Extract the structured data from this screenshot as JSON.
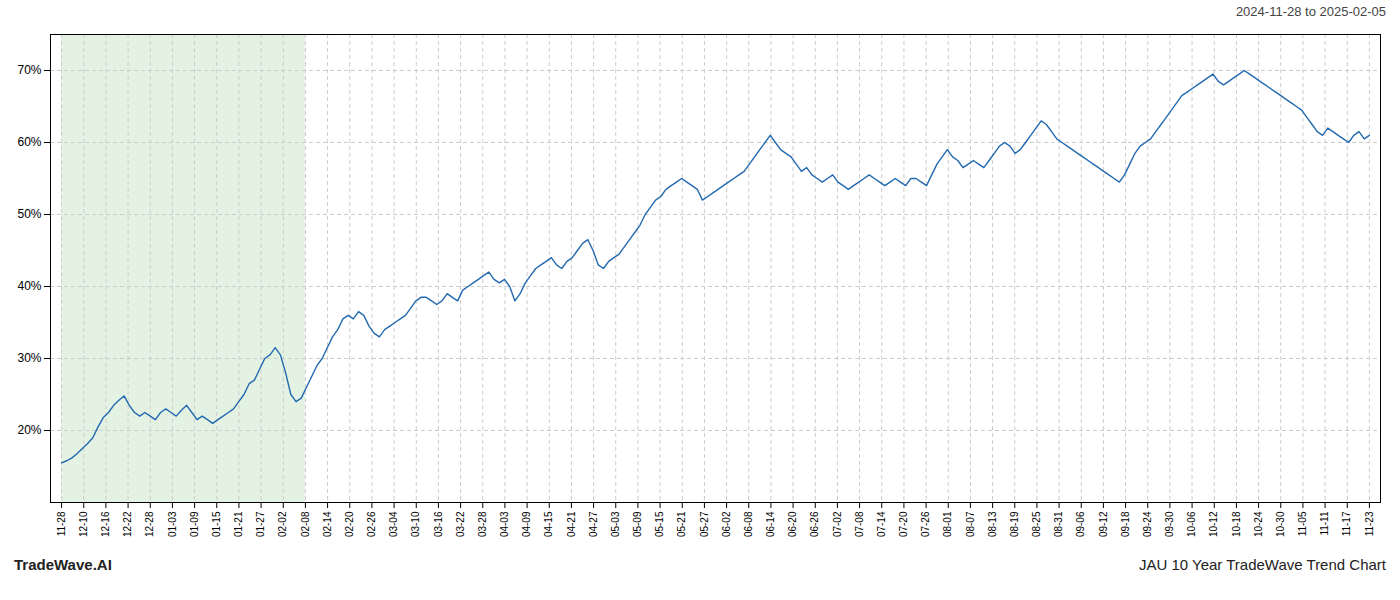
{
  "chart_data": {
    "type": "line",
    "title": "JAU 10 Year TradeWave Trend Chart",
    "subtitle": "2024-11-28 to 2025-02-05",
    "annotations": [
      "TradeWave.AI"
    ],
    "color": "#2369b0",
    "shaded": {
      "from": "11-28",
      "to": "02-08",
      "color": "#d8edd8"
    },
    "grid": true,
    "xlim": [
      -0.5,
      59.5
    ],
    "xticks": [
      {
        "value": 0,
        "label": "11-28"
      },
      {
        "value": 1,
        "label": "12-10"
      },
      {
        "value": 2,
        "label": "12-16"
      },
      {
        "value": 3,
        "label": "12-22"
      },
      {
        "value": 4,
        "label": "12-28"
      },
      {
        "value": 5,
        "label": "01-03"
      },
      {
        "value": 6,
        "label": "01-09"
      },
      {
        "value": 7,
        "label": "01-15"
      },
      {
        "value": 8,
        "label": "01-21"
      },
      {
        "value": 9,
        "label": "01-27"
      },
      {
        "value": 10,
        "label": "02-02"
      },
      {
        "value": 11,
        "label": "02-08"
      },
      {
        "value": 12,
        "label": "02-14"
      },
      {
        "value": 13,
        "label": "02-20"
      },
      {
        "value": 14,
        "label": "02-26"
      },
      {
        "value": 15,
        "label": "03-04"
      },
      {
        "value": 16,
        "label": "03-10"
      },
      {
        "value": 17,
        "label": "03-16"
      },
      {
        "value": 18,
        "label": "03-22"
      },
      {
        "value": 19,
        "label": "03-28"
      },
      {
        "value": 20,
        "label": "04-03"
      },
      {
        "value": 21,
        "label": "04-09"
      },
      {
        "value": 22,
        "label": "04-15"
      },
      {
        "value": 23,
        "label": "04-21"
      },
      {
        "value": 24,
        "label": "04-27"
      },
      {
        "value": 25,
        "label": "05-03"
      },
      {
        "value": 26,
        "label": "05-09"
      },
      {
        "value": 27,
        "label": "05-15"
      },
      {
        "value": 28,
        "label": "05-21"
      },
      {
        "value": 29,
        "label": "05-27"
      },
      {
        "value": 30,
        "label": "06-02"
      },
      {
        "value": 31,
        "label": "06-08"
      },
      {
        "value": 32,
        "label": "06-14"
      },
      {
        "value": 33,
        "label": "06-20"
      },
      {
        "value": 34,
        "label": "06-26"
      },
      {
        "value": 35,
        "label": "07-02"
      },
      {
        "value": 36,
        "label": "07-08"
      },
      {
        "value": 37,
        "label": "07-14"
      },
      {
        "value": 38,
        "label": "07-20"
      },
      {
        "value": 39,
        "label": "07-26"
      },
      {
        "value": 40,
        "label": "08-01"
      },
      {
        "value": 41,
        "label": "08-07"
      },
      {
        "value": 42,
        "label": "08-13"
      },
      {
        "value": 43,
        "label": "08-19"
      },
      {
        "value": 44,
        "label": "08-25"
      },
      {
        "value": 45,
        "label": "08-31"
      },
      {
        "value": 46,
        "label": "09-06"
      },
      {
        "value": 47,
        "label": "09-12"
      },
      {
        "value": 48,
        "label": "09-18"
      },
      {
        "value": 49,
        "label": "09-24"
      },
      {
        "value": 50,
        "label": "09-30"
      },
      {
        "value": 51,
        "label": "10-06"
      },
      {
        "value": 52,
        "label": "10-12"
      },
      {
        "value": 53,
        "label": "10-18"
      },
      {
        "value": 54,
        "label": "10-24"
      },
      {
        "value": 55,
        "label": "10-30"
      },
      {
        "value": 56,
        "label": "11-05"
      },
      {
        "value": 57,
        "label": "11-11"
      },
      {
        "value": 58,
        "label": "11-17"
      },
      {
        "value": 59,
        "label": "11-23"
      }
    ],
    "ylim": [
      10,
      75
    ],
    "yticks": [
      {
        "value": 20,
        "label": "20%"
      },
      {
        "value": 30,
        "label": "30%"
      },
      {
        "value": 40,
        "label": "40%"
      },
      {
        "value": 50,
        "label": "50%"
      },
      {
        "value": 60,
        "label": "60%"
      },
      {
        "value": 70,
        "label": "70%"
      }
    ],
    "values": [
      15.5,
      15.8,
      16.2,
      16.8,
      17.5,
      18.2,
      19.0,
      20.5,
      21.8,
      22.5,
      23.5,
      24.2,
      24.8,
      23.5,
      22.5,
      22.0,
      22.5,
      22.0,
      21.5,
      22.5,
      23.0,
      22.5,
      22.0,
      22.8,
      23.5,
      22.5,
      21.5,
      22.0,
      21.5,
      21.0,
      21.5,
      22.0,
      22.5,
      23.0,
      24.0,
      25.0,
      26.5,
      27.0,
      28.5,
      30.0,
      30.5,
      31.5,
      30.5,
      28.0,
      25.0,
      24.0,
      24.5,
      26.0,
      27.5,
      29.0,
      30.0,
      31.5,
      33.0,
      34.0,
      35.5,
      36.0,
      35.5,
      36.5,
      36.0,
      34.5,
      33.5,
      33.0,
      34.0,
      34.5,
      35.0,
      35.5,
      36.0,
      37.0,
      38.0,
      38.5,
      38.5,
      38.0,
      37.5,
      38.0,
      39.0,
      38.5,
      38.0,
      39.5,
      40.0,
      40.5,
      41.0,
      41.5,
      42.0,
      41.0,
      40.5,
      41.0,
      40.0,
      38.0,
      39.0,
      40.5,
      41.5,
      42.5,
      43.0,
      43.5,
      44.0,
      43.0,
      42.5,
      43.5,
      44.0,
      45.0,
      46.0,
      46.5,
      45.0,
      43.0,
      42.5,
      43.5,
      44.0,
      44.5,
      45.5,
      46.5,
      47.5,
      48.5,
      50.0,
      51.0,
      52.0,
      52.5,
      53.5,
      54.0,
      54.5,
      55.0,
      54.5,
      54.0,
      53.5,
      52.0,
      52.5,
      53.0,
      53.5,
      54.0,
      54.5,
      55.0,
      55.5,
      56.0,
      57.0,
      58.0,
      59.0,
      60.0,
      61.0,
      60.0,
      59.0,
      58.5,
      58.0,
      57.0,
      56.0,
      56.5,
      55.5,
      55.0,
      54.5,
      55.0,
      55.5,
      54.5,
      54.0,
      53.5,
      54.0,
      54.5,
      55.0,
      55.5,
      55.0,
      54.5,
      54.0,
      54.5,
      55.0,
      54.5,
      54.0,
      55.0,
      55.0,
      54.5,
      54.0,
      55.5,
      57.0,
      58.0,
      59.0,
      58.0,
      57.5,
      56.5,
      57.0,
      57.5,
      57.0,
      56.5,
      57.5,
      58.5,
      59.5,
      60.0,
      59.5,
      58.5,
      59.0,
      60.0,
      61.0,
      62.0,
      63.0,
      62.5,
      61.5,
      60.5,
      60.0,
      59.5,
      59.0,
      58.5,
      58.0,
      57.5,
      57.0,
      56.5,
      56.0,
      55.5,
      55.0,
      54.5,
      55.5,
      57.0,
      58.5,
      59.5,
      60.0,
      60.5,
      61.5,
      62.5,
      63.5,
      64.5,
      65.5,
      66.5,
      67.0,
      67.5,
      68.0,
      68.5,
      69.0,
      69.5,
      68.5,
      68.0,
      68.5,
      69.0,
      69.5,
      70.0,
      69.5,
      69.0,
      68.5,
      68.0,
      67.5,
      67.0,
      66.5,
      66.0,
      65.5,
      65.0,
      64.5,
      63.5,
      62.5,
      61.5,
      61.0,
      62.0,
      61.5,
      61.0,
      60.5,
      60.0,
      61.0,
      61.5,
      60.5,
      61.0
    ]
  }
}
